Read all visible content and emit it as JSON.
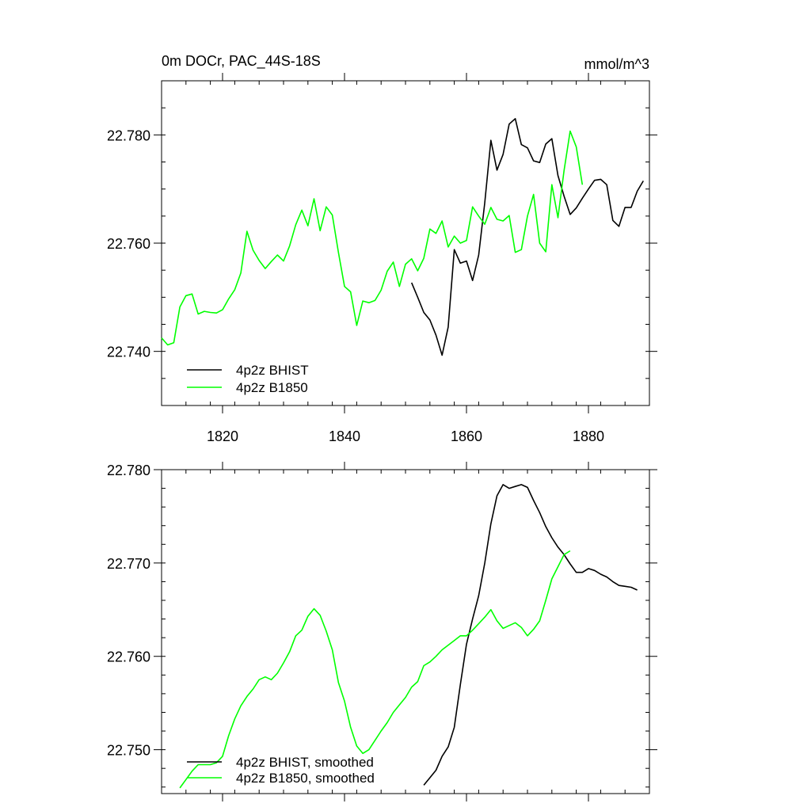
{
  "colors": {
    "bhist": "#000000",
    "b1850": "#00ff00",
    "axis": "#000000",
    "background": "#ffffff"
  },
  "chart_data": [
    {
      "type": "line",
      "title": "0m DOCr, PAC_44S-18S",
      "units": "mmol/m^3",
      "xlim": [
        1810,
        1890
      ],
      "ylim": [
        22.73,
        22.79
      ],
      "xticks": [
        1820,
        1840,
        1860,
        1880
      ],
      "xtick_labels": [
        "1820",
        "1840",
        "1860",
        "1880"
      ],
      "xminor_step": 4,
      "yticks": [
        22.74,
        22.76,
        22.78
      ],
      "ytick_labels": [
        "22.740",
        "22.760",
        "22.780"
      ],
      "yminor_step": 0.005,
      "legend": [
        "4p2z BHIST",
        "4p2z B1850"
      ],
      "series": [
        {
          "name": "4p2z BHIST",
          "color": "#000000",
          "x": [
            1851,
            1852,
            1853,
            1854,
            1855,
            1856,
            1857,
            1858,
            1859,
            1860,
            1861,
            1862,
            1863,
            1864,
            1865,
            1866,
            1867,
            1868,
            1869,
            1870,
            1871,
            1872,
            1873,
            1874,
            1875,
            1876,
            1877,
            1878,
            1879,
            1880,
            1881,
            1882,
            1883,
            1884,
            1885,
            1886,
            1887,
            1888,
            1889
          ],
          "y": [
            22.7527,
            22.75,
            22.7472,
            22.7458,
            22.743,
            22.7393,
            22.7445,
            22.7588,
            22.7563,
            22.7567,
            22.7531,
            22.7578,
            22.7675,
            22.779,
            22.7735,
            22.7764,
            22.782,
            22.783,
            22.7782,
            22.7776,
            22.7752,
            22.7749,
            22.7783,
            22.7793,
            22.7725,
            22.7687,
            22.7653,
            22.7665,
            22.7683,
            22.77,
            22.7716,
            22.7718,
            22.7708,
            22.7642,
            22.7631,
            22.7666,
            22.7666,
            22.7696,
            22.7715
          ]
        },
        {
          "name": "4p2z B1850",
          "color": "#00ff00",
          "x": [
            1810,
            1811,
            1812,
            1813,
            1814,
            1815,
            1816,
            1817,
            1818,
            1819,
            1820,
            1821,
            1822,
            1823,
            1824,
            1825,
            1826,
            1827,
            1828,
            1829,
            1830,
            1831,
            1832,
            1833,
            1834,
            1835,
            1836,
            1837,
            1838,
            1839,
            1840,
            1841,
            1842,
            1843,
            1844,
            1845,
            1846,
            1847,
            1848,
            1849,
            1850,
            1851,
            1852,
            1853,
            1854,
            1855,
            1856,
            1857,
            1858,
            1859,
            1860,
            1861,
            1862,
            1863,
            1864,
            1865,
            1866,
            1867,
            1868,
            1869,
            1870,
            1871,
            1872,
            1873,
            1874,
            1875,
            1876,
            1877,
            1878,
            1879
          ],
          "y": [
            22.7425,
            22.7412,
            22.7416,
            22.7482,
            22.7503,
            22.7506,
            22.7469,
            22.7474,
            22.7472,
            22.7471,
            22.7477,
            22.7497,
            22.7514,
            22.7545,
            22.7622,
            22.7587,
            22.7568,
            22.7553,
            22.7566,
            22.7578,
            22.7567,
            22.7595,
            22.7634,
            22.7661,
            22.7632,
            22.7682,
            22.7623,
            22.7667,
            22.7652,
            22.7583,
            22.752,
            22.751,
            22.7448,
            22.7493,
            22.749,
            22.7494,
            22.7513,
            22.7548,
            22.7565,
            22.752,
            22.7561,
            22.7571,
            22.7549,
            22.7572,
            22.7626,
            22.7618,
            22.7641,
            22.7593,
            22.7613,
            22.76,
            22.7605,
            22.7667,
            22.765,
            22.7635,
            22.7666,
            22.7644,
            22.7641,
            22.7651,
            22.7583,
            22.7588,
            22.765,
            22.769,
            22.76,
            22.7584,
            22.7708,
            22.7647,
            22.7734,
            22.7807,
            22.7778,
            22.7708
          ]
        }
      ]
    },
    {
      "type": "line",
      "title": "",
      "xlim": [
        1810,
        1890
      ],
      "ylim": [
        22.7453,
        22.78
      ],
      "xticks": [
        1820,
        1840,
        1860,
        1880
      ],
      "xminor_step": 4,
      "yticks": [
        22.75,
        22.76,
        22.77,
        22.78
      ],
      "ytick_labels": [
        "22.750",
        "22.760",
        "22.770",
        "22.780"
      ],
      "yminor_step": 0.002,
      "legend": [
        "4p2z BHIST, smoothed",
        "4p2z B1850, smoothed"
      ],
      "series": [
        {
          "name": "4p2z BHIST, smoothed",
          "color": "#000000",
          "x": [
            1853,
            1854,
            1855,
            1856,
            1857,
            1858,
            1859,
            1860,
            1861,
            1862,
            1863,
            1864,
            1865,
            1866,
            1867,
            1868,
            1869,
            1870,
            1871,
            1872,
            1873,
            1874,
            1875,
            1876,
            1877,
            1878,
            1879,
            1880,
            1881,
            1882,
            1883,
            1884,
            1885,
            1886,
            1887,
            1888
          ],
          "y": [
            22.7462,
            22.747,
            22.7478,
            22.7493,
            22.7503,
            22.7524,
            22.757,
            22.7613,
            22.764,
            22.7665,
            22.77,
            22.7742,
            22.7772,
            22.7784,
            22.778,
            22.7782,
            22.7784,
            22.7781,
            22.7767,
            22.7754,
            22.7739,
            22.7727,
            22.7717,
            22.7709,
            22.7699,
            22.769,
            22.769,
            22.7694,
            22.7692,
            22.7688,
            22.7685,
            22.768,
            22.7676,
            22.7675,
            22.7674,
            22.7671
          ]
        },
        {
          "name": "4p2z B1850, smoothed",
          "color": "#00ff00",
          "x": [
            1813,
            1814,
            1815,
            1816,
            1817,
            1818,
            1819,
            1820,
            1821,
            1822,
            1823,
            1824,
            1825,
            1826,
            1827,
            1828,
            1829,
            1830,
            1831,
            1832,
            1833,
            1834,
            1835,
            1836,
            1837,
            1838,
            1839,
            1840,
            1841,
            1842,
            1843,
            1844,
            1845,
            1846,
            1847,
            1848,
            1849,
            1850,
            1851,
            1852,
            1853,
            1854,
            1855,
            1856,
            1857,
            1858,
            1859,
            1860,
            1861,
            1862,
            1863,
            1864,
            1865,
            1866,
            1867,
            1868,
            1869,
            1870,
            1871,
            1872,
            1873,
            1874,
            1875,
            1876,
            1877
          ],
          "y": [
            22.7459,
            22.7468,
            22.7477,
            22.7484,
            22.7484,
            22.7484,
            22.7486,
            22.7493,
            22.7515,
            22.7533,
            22.7547,
            22.7557,
            22.7565,
            22.7575,
            22.7578,
            22.7575,
            22.7582,
            22.7593,
            22.7605,
            22.7622,
            22.7628,
            22.7643,
            22.7651,
            22.7644,
            22.7627,
            22.7607,
            22.7572,
            22.7552,
            22.7524,
            22.7504,
            22.7496,
            22.75,
            22.751,
            22.752,
            22.7529,
            22.754,
            22.7548,
            22.7556,
            22.7567,
            22.7573,
            22.759,
            22.7594,
            22.76,
            22.7607,
            22.7612,
            22.7617,
            22.7622,
            22.7622,
            22.7628,
            22.7635,
            22.7642,
            22.765,
            22.7638,
            22.763,
            22.7633,
            22.7636,
            22.7631,
            22.7622,
            22.7629,
            22.7638,
            22.766,
            22.7683,
            22.7696,
            22.7709,
            22.7713
          ]
        }
      ]
    }
  ]
}
